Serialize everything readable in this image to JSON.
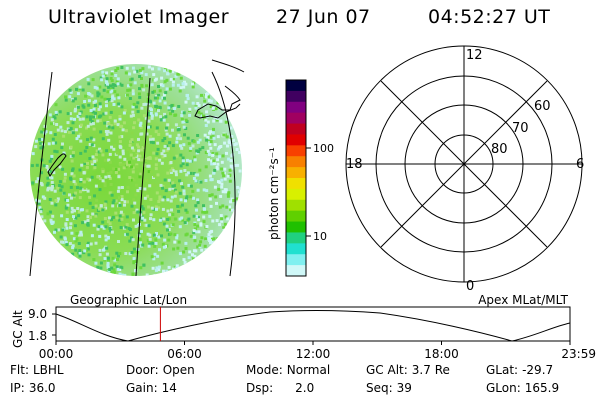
{
  "header": {
    "instrument": "Ultraviolet Imager",
    "date": "27 Jun 07",
    "time": "04:52:27 UT"
  },
  "colorbar": {
    "unit_label": "photon cm⁻²s⁻¹",
    "ticks": [
      "100",
      "10"
    ],
    "colors": [
      "#000040",
      "#400060",
      "#800080",
      "#a00060",
      "#c00020",
      "#e00000",
      "#f84000",
      "#f88000",
      "#f8b000",
      "#f0e000",
      "#d8f000",
      "#a0e000",
      "#60d000",
      "#20c000",
      "#20d080",
      "#20e0d0",
      "#80f0f0",
      "#d0f8f8"
    ]
  },
  "polar_plot": {
    "mlt_labels": {
      "top": "12",
      "left": "18",
      "right": "6",
      "bottom": "0"
    },
    "lat_labels": [
      "60",
      "70",
      "80"
    ]
  },
  "orbit_panel": {
    "left_title": "Geographic Lat/Lon",
    "right_title": "Apex MLat/MLT",
    "y_axis_label": "GC Alt",
    "y_ticks": [
      "9.0",
      "1.8"
    ],
    "x_ticks": [
      "00:00",
      "06:00",
      "12:00",
      "18:00",
      "23:59"
    ],
    "current_time_fraction": 0.2031
  },
  "status": {
    "filter_label": "Flt:",
    "filter_value": "LBHL",
    "ip_label": "IP:",
    "ip_value": "36.0",
    "door_label": "Door:",
    "door_value": "Open",
    "gain_label": "Gain:",
    "gain_value": "14",
    "mode_label": "Mode:",
    "mode_value": "Normal",
    "dsp_label": "Dsp:",
    "dsp_value": "2.0",
    "gcalt_label": "GC Alt:",
    "gcalt_value": "3.7 Re",
    "seq_label": "Seq:",
    "seq_value": "39",
    "glat_label": "GLat:",
    "glat_value": "-29.7",
    "glon_label": "GLon:",
    "glon_value": "165.9"
  },
  "colors": {
    "marker": "#cc0000",
    "disk_base": "#7fd93c"
  }
}
